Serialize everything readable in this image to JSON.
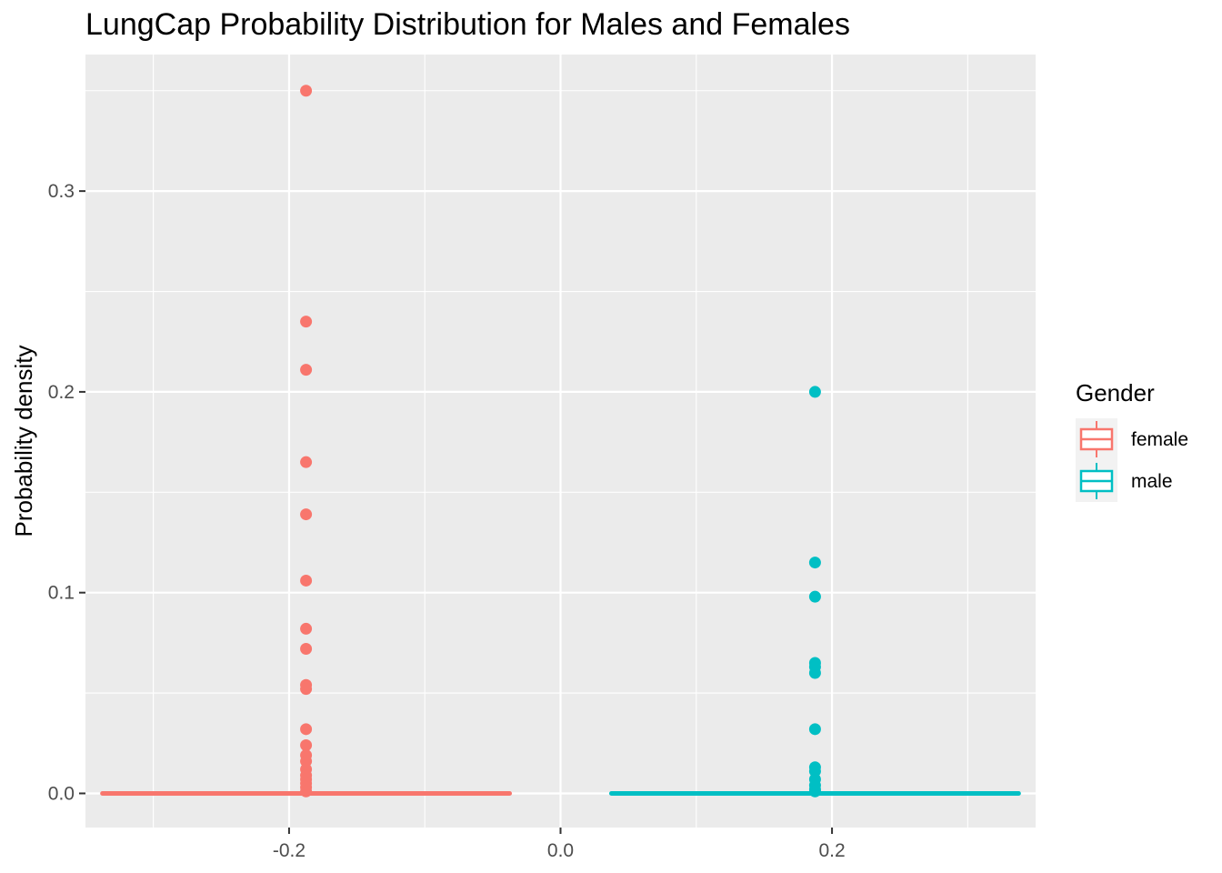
{
  "chart_data": {
    "type": "boxplot",
    "title": "LungCap Probability Distribution for Males and Females",
    "xlabel": "",
    "ylabel": "Probability density",
    "xlim": [
      -0.35,
      0.35
    ],
    "ylim": [
      -0.017,
      0.368
    ],
    "x_ticks": [
      -0.2,
      0.0,
      0.2
    ],
    "x_tick_labels": [
      "-0.2",
      "0.0",
      "0.2"
    ],
    "y_ticks": [
      0.0,
      0.1,
      0.2,
      0.3
    ],
    "y_tick_labels": [
      "0.0",
      "0.1",
      "0.2",
      "0.3"
    ],
    "x_minor": [
      -0.3,
      -0.1,
      0.1,
      0.3
    ],
    "y_minor": [
      0.05,
      0.15,
      0.25,
      0.35
    ],
    "grid": true,
    "panel_background": "#ebebeb",
    "legend": {
      "title": "Gender",
      "position": "right",
      "entries": [
        {
          "label": "female",
          "color": "#F8766D"
        },
        {
          "label": "male",
          "color": "#00BFC4"
        }
      ]
    },
    "series": [
      {
        "name": "female",
        "color": "#F8766D",
        "box_xmin": -0.3375,
        "box_xmax": -0.0375,
        "median": 0.0,
        "q1": 0.0,
        "q3": 0.0,
        "whisker_low": 0.0,
        "whisker_high": 0.0,
        "outlier_x": -0.1875,
        "outliers": [
          0.35,
          0.235,
          0.211,
          0.165,
          0.139,
          0.106,
          0.082,
          0.072,
          0.054,
          0.052,
          0.032,
          0.024,
          0.019,
          0.016,
          0.012,
          0.009,
          0.007,
          0.005,
          0.003,
          0.001
        ]
      },
      {
        "name": "male",
        "color": "#00BFC4",
        "box_xmin": 0.0375,
        "box_xmax": 0.3375,
        "median": 0.0,
        "q1": 0.0,
        "q3": 0.0,
        "whisker_low": 0.0,
        "whisker_high": 0.0,
        "outlier_x": 0.1875,
        "outliers": [
          0.2,
          0.115,
          0.098,
          0.065,
          0.063,
          0.06,
          0.032,
          0.013,
          0.011,
          0.007,
          0.004,
          0.002,
          0.001
        ]
      }
    ]
  }
}
